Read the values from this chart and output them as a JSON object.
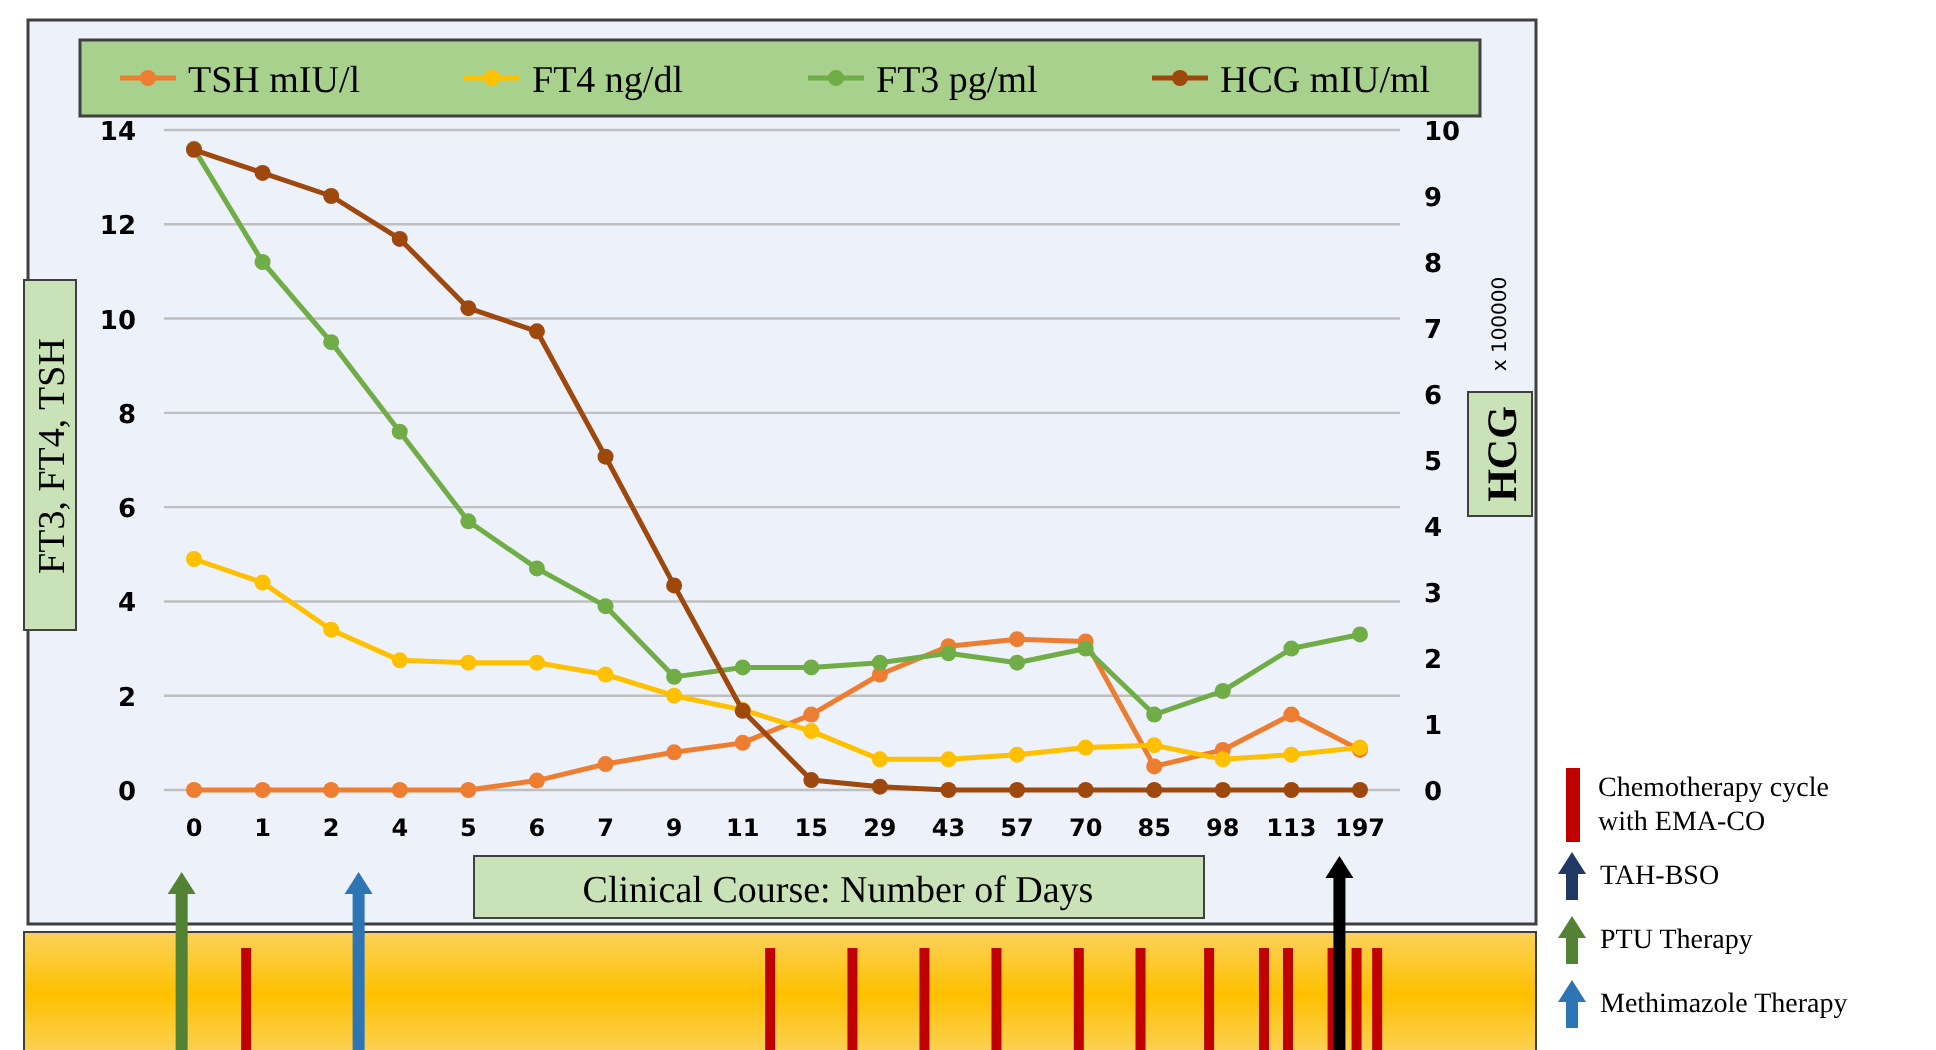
{
  "chart_data": {
    "type": "line",
    "categories": [
      "0",
      "1",
      "2",
      "4",
      "5",
      "6",
      "7",
      "9",
      "11",
      "15",
      "29",
      "43",
      "57",
      "70",
      "85",
      "98",
      "113",
      "197"
    ],
    "series": [
      {
        "name": "TSH mIU/l",
        "color": "#ed7d31",
        "values": [
          0,
          0,
          0,
          0,
          0,
          0.2,
          0.55,
          0.8,
          1.0,
          1.6,
          2.45,
          3.05,
          3.2,
          3.15,
          0.5,
          0.85,
          1.6,
          0.85
        ]
      },
      {
        "name": "FT4 ng/dl",
        "color": "#ffc000",
        "values": [
          4.9,
          4.4,
          3.4,
          2.75,
          2.7,
          2.7,
          2.45,
          2.0,
          1.7,
          1.25,
          0.65,
          0.65,
          0.75,
          0.9,
          0.95,
          0.65,
          0.75,
          0.9
        ]
      },
      {
        "name": "FT3 pg/ml",
        "color": "#70ad47",
        "values": [
          13.6,
          11.2,
          9.5,
          7.6,
          5.7,
          4.7,
          3.9,
          2.4,
          2.6,
          2.6,
          2.7,
          2.9,
          2.7,
          3.0,
          1.6,
          2.1,
          3.0,
          3.3
        ]
      },
      {
        "name": "HCG mIU/ml",
        "color": "#9e480e",
        "axis": "y2",
        "values": [
          9.7,
          9.35,
          9.0,
          8.35,
          7.3,
          6.95,
          5.05,
          3.1,
          1.2,
          0.15,
          0.05,
          0,
          0,
          0,
          0,
          0,
          0,
          0
        ]
      }
    ],
    "ylim": [
      0,
      14
    ],
    "yticks": [
      0,
      2,
      4,
      6,
      8,
      10,
      12,
      14
    ],
    "y2lim": [
      0,
      10
    ],
    "y2ticks": [
      0,
      1,
      2,
      3,
      4,
      5,
      6,
      7,
      8,
      9,
      10
    ],
    "xlabel": "Clinical Course: Number of Days",
    "ylabel": "FT3, FT4, TSH",
    "y2label": "HCG",
    "annotations": [
      "x 100000",
      "Chemotherapy cycle with EMA-CO",
      "TAH-BSO",
      "PTU Therapy",
      "Methimazole Therapy"
    ],
    "legend": "top",
    "grid": "y",
    "marker": "circle",
    "line_style": "solid"
  }
}
